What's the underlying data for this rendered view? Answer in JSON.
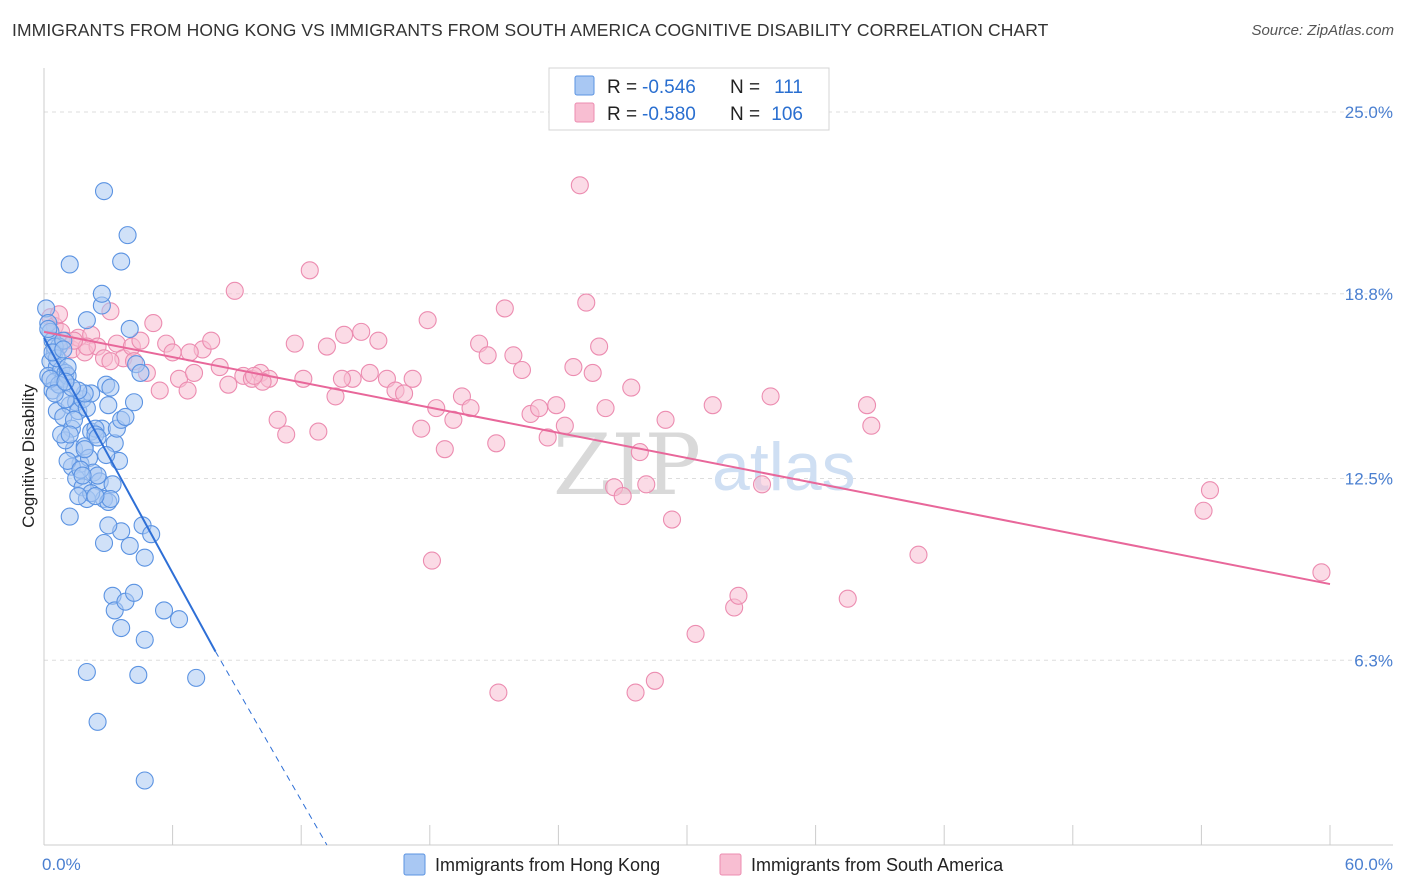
{
  "header": {
    "title": "IMMIGRANTS FROM HONG KONG VS IMMIGRANTS FROM SOUTH AMERICA COGNITIVE DISABILITY CORRELATION CHART",
    "source": "Source: ZipAtlas.com"
  },
  "watermark": {
    "zip": "ZIP",
    "atlas": "atlas"
  },
  "colors": {
    "hong_kong_fill": "#a9c8f3",
    "hong_kong_stroke": "#5b93e2",
    "hong_kong_line": "#2e6fd6",
    "south_america_fill": "#f8bed2",
    "south_america_stroke": "#ec8cb0",
    "south_america_line": "#e8679a",
    "axis_label": "#4a7fd0",
    "grid": "#dddddd"
  },
  "legend": {
    "r_label": "R =",
    "n_label": "N =",
    "rows": [
      {
        "r": "-0.546",
        "n": "111"
      },
      {
        "r": "-0.580",
        "n": "106"
      }
    ]
  },
  "chart_data": {
    "type": "scatter",
    "ylabel": "Cognitive Disability",
    "xlim": [
      0,
      60
    ],
    "ylim": [
      0,
      26.5
    ],
    "x_ticks": [
      "0.0%",
      "60.0%"
    ],
    "y_ticks": [
      {
        "value": 25.0,
        "label": "25.0%"
      },
      {
        "value": 18.8,
        "label": "18.8%"
      },
      {
        "value": 12.5,
        "label": "12.5%"
      },
      {
        "value": 6.3,
        "label": "6.3%"
      }
    ],
    "grid": true,
    "legend_position": "top-center",
    "series": [
      {
        "name": "Immigrants from Hong Kong",
        "trend": {
          "x": [
            0.0,
            8.0
          ],
          "y": [
            17.3,
            6.6
          ],
          "dashed_to": [
            13.2,
            0.0
          ]
        },
        "points": [
          [
            0.1,
            18.3
          ],
          [
            0.2,
            17.8
          ],
          [
            0.3,
            17.5
          ],
          [
            0.4,
            17.2
          ],
          [
            0.5,
            16.8
          ],
          [
            0.3,
            16.5
          ],
          [
            0.6,
            16.3
          ],
          [
            0.2,
            16.0
          ],
          [
            0.8,
            16.2
          ],
          [
            0.5,
            15.8
          ],
          [
            0.4,
            15.5
          ],
          [
            0.9,
            15.9
          ],
          [
            1.0,
            16.1
          ],
          [
            0.7,
            17.0
          ],
          [
            1.1,
            16.0
          ],
          [
            0.6,
            14.8
          ],
          [
            1.2,
            15.0
          ],
          [
            0.9,
            14.6
          ],
          [
            1.5,
            15.1
          ],
          [
            1.3,
            14.2
          ],
          [
            1.6,
            14.8
          ],
          [
            1.8,
            15.2
          ],
          [
            2.0,
            14.9
          ],
          [
            2.2,
            14.1
          ],
          [
            1.4,
            13.5
          ],
          [
            1.7,
            13.0
          ],
          [
            1.9,
            13.6
          ],
          [
            2.1,
            13.2
          ],
          [
            1.0,
            13.8
          ],
          [
            1.3,
            12.9
          ],
          [
            1.5,
            12.5
          ],
          [
            1.8,
            12.2
          ],
          [
            2.3,
            12.7
          ],
          [
            2.6,
            12.4
          ],
          [
            2.8,
            11.8
          ],
          [
            2.0,
            11.8
          ],
          [
            1.2,
            11.2
          ],
          [
            3.0,
            11.7
          ],
          [
            2.5,
            12.6
          ],
          [
            3.2,
            12.3
          ],
          [
            3.5,
            13.1
          ],
          [
            3.3,
            13.7
          ],
          [
            2.7,
            14.2
          ],
          [
            3.4,
            14.2
          ],
          [
            3.6,
            14.5
          ],
          [
            2.4,
            14.2
          ],
          [
            2.9,
            15.7
          ],
          [
            3.1,
            15.6
          ],
          [
            2.2,
            15.4
          ],
          [
            1.9,
            15.4
          ],
          [
            1.6,
            15.5
          ],
          [
            2.0,
            17.9
          ],
          [
            2.7,
            18.4
          ],
          [
            2.8,
            22.3
          ],
          [
            3.9,
            20.8
          ],
          [
            3.6,
            19.9
          ],
          [
            1.2,
            19.8
          ],
          [
            2.7,
            18.8
          ],
          [
            4.0,
            17.6
          ],
          [
            4.3,
            16.4
          ],
          [
            4.5,
            16.1
          ],
          [
            4.2,
            15.1
          ],
          [
            3.8,
            14.6
          ],
          [
            2.4,
            14.0
          ],
          [
            3.1,
            11.8
          ],
          [
            3.6,
            10.7
          ],
          [
            4.6,
            10.9
          ],
          [
            5.0,
            10.6
          ],
          [
            2.8,
            10.3
          ],
          [
            3.0,
            10.9
          ],
          [
            4.7,
            9.8
          ],
          [
            4.0,
            10.2
          ],
          [
            3.2,
            8.5
          ],
          [
            3.3,
            8.0
          ],
          [
            3.8,
            8.3
          ],
          [
            4.2,
            8.6
          ],
          [
            5.6,
            8.0
          ],
          [
            6.3,
            7.7
          ],
          [
            3.6,
            7.4
          ],
          [
            4.7,
            7.0
          ],
          [
            2.0,
            5.9
          ],
          [
            4.4,
            5.8
          ],
          [
            7.1,
            5.7
          ],
          [
            2.5,
            4.2
          ],
          [
            4.7,
            2.2
          ],
          [
            0.5,
            17.0
          ],
          [
            0.9,
            17.2
          ],
          [
            0.6,
            16.6
          ],
          [
            1.0,
            15.2
          ],
          [
            1.3,
            15.6
          ],
          [
            2.5,
            13.9
          ],
          [
            1.1,
            13.1
          ],
          [
            1.7,
            12.8
          ],
          [
            0.8,
            14.0
          ],
          [
            1.4,
            14.5
          ],
          [
            2.2,
            12.0
          ],
          [
            1.6,
            11.9
          ],
          [
            0.4,
            16.8
          ],
          [
            0.7,
            15.7
          ],
          [
            1.1,
            16.3
          ],
          [
            3.0,
            15.0
          ],
          [
            2.9,
            13.3
          ],
          [
            2.4,
            11.9
          ],
          [
            1.8,
            12.6
          ],
          [
            1.2,
            14.0
          ],
          [
            0.3,
            15.9
          ],
          [
            0.5,
            15.4
          ],
          [
            0.9,
            16.9
          ],
          [
            0.2,
            17.6
          ],
          [
            1.0,
            15.8
          ],
          [
            1.9,
            13.5
          ]
        ]
      },
      {
        "name": "Immigrants from South America",
        "trend": {
          "x": [
            0.0,
            60.0
          ],
          "y": [
            17.5,
            8.9
          ]
        },
        "points": [
          [
            0.3,
            18.0
          ],
          [
            0.5,
            17.7
          ],
          [
            0.8,
            17.5
          ],
          [
            1.0,
            17.2
          ],
          [
            1.3,
            16.9
          ],
          [
            1.6,
            17.3
          ],
          [
            1.9,
            16.8
          ],
          [
            2.2,
            17.4
          ],
          [
            2.5,
            17.0
          ],
          [
            2.8,
            16.6
          ],
          [
            3.1,
            18.2
          ],
          [
            3.4,
            17.1
          ],
          [
            3.7,
            16.6
          ],
          [
            4.1,
            17.0
          ],
          [
            4.5,
            17.2
          ],
          [
            4.8,
            16.1
          ],
          [
            5.1,
            17.8
          ],
          [
            5.4,
            15.5
          ],
          [
            5.7,
            17.1
          ],
          [
            6.0,
            16.8
          ],
          [
            6.3,
            15.9
          ],
          [
            6.7,
            15.5
          ],
          [
            7.0,
            16.1
          ],
          [
            7.4,
            16.9
          ],
          [
            7.8,
            17.2
          ],
          [
            8.2,
            16.3
          ],
          [
            8.6,
            15.7
          ],
          [
            8.9,
            18.9
          ],
          [
            9.3,
            16.0
          ],
          [
            9.7,
            15.9
          ],
          [
            10.1,
            16.1
          ],
          [
            10.5,
            15.9
          ],
          [
            10.9,
            14.5
          ],
          [
            11.3,
            14.0
          ],
          [
            11.7,
            17.1
          ],
          [
            12.1,
            15.9
          ],
          [
            12.4,
            19.6
          ],
          [
            12.8,
            14.1
          ],
          [
            13.2,
            17.0
          ],
          [
            13.6,
            15.3
          ],
          [
            14.0,
            17.4
          ],
          [
            14.4,
            15.9
          ],
          [
            14.8,
            17.5
          ],
          [
            15.2,
            16.1
          ],
          [
            15.6,
            17.2
          ],
          [
            16.0,
            15.9
          ],
          [
            16.4,
            15.5
          ],
          [
            16.8,
            15.4
          ],
          [
            17.2,
            15.9
          ],
          [
            17.6,
            14.2
          ],
          [
            17.9,
            17.9
          ],
          [
            18.3,
            14.9
          ],
          [
            18.7,
            13.5
          ],
          [
            19.1,
            14.5
          ],
          [
            19.5,
            15.3
          ],
          [
            19.9,
            14.9
          ],
          [
            20.3,
            17.1
          ],
          [
            20.7,
            16.7
          ],
          [
            21.1,
            13.7
          ],
          [
            21.5,
            18.3
          ],
          [
            21.9,
            16.7
          ],
          [
            22.3,
            16.2
          ],
          [
            22.7,
            14.7
          ],
          [
            23.1,
            14.9
          ],
          [
            23.5,
            13.9
          ],
          [
            23.9,
            15.0
          ],
          [
            24.3,
            14.3
          ],
          [
            24.7,
            16.3
          ],
          [
            25.0,
            22.5
          ],
          [
            25.3,
            18.5
          ],
          [
            25.6,
            16.1
          ],
          [
            25.9,
            17.0
          ],
          [
            26.2,
            14.9
          ],
          [
            26.6,
            12.2
          ],
          [
            27.0,
            11.9
          ],
          [
            27.4,
            15.6
          ],
          [
            27.8,
            13.4
          ],
          [
            28.1,
            12.3
          ],
          [
            28.5,
            5.6
          ],
          [
            29.0,
            14.5
          ],
          [
            29.3,
            11.1
          ],
          [
            31.2,
            15.0
          ],
          [
            32.2,
            8.1
          ],
          [
            32.4,
            8.5
          ],
          [
            33.5,
            12.3
          ],
          [
            33.9,
            15.3
          ],
          [
            37.5,
            8.4
          ],
          [
            38.4,
            15.0
          ],
          [
            38.6,
            14.3
          ],
          [
            40.8,
            9.9
          ],
          [
            54.1,
            11.4
          ],
          [
            54.4,
            12.1
          ],
          [
            59.6,
            9.3
          ],
          [
            21.2,
            5.2
          ],
          [
            30.4,
            7.2
          ],
          [
            27.6,
            5.2
          ],
          [
            18.1,
            9.7
          ],
          [
            10.2,
            15.8
          ],
          [
            6.8,
            16.8
          ],
          [
            9.8,
            16.0
          ],
          [
            13.9,
            15.9
          ],
          [
            4.2,
            16.5
          ],
          [
            3.1,
            16.5
          ],
          [
            2.0,
            17.0
          ],
          [
            1.4,
            17.2
          ],
          [
            0.7,
            18.1
          ]
        ]
      }
    ]
  },
  "bottom_legend": [
    {
      "label": "Immigrants from Hong Kong"
    },
    {
      "label": "Immigrants from South America"
    }
  ]
}
